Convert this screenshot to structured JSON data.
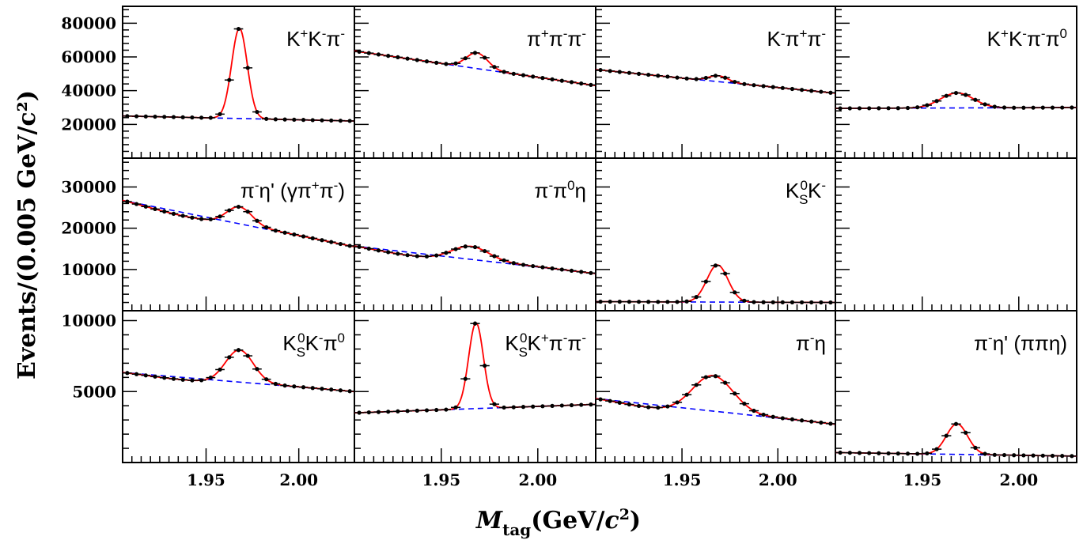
{
  "chart_data": {
    "type": "scatter",
    "layout": "grid 3 rows x 4 columns, shared axes",
    "xlabel_parts": {
      "main": "M",
      "sub": "tag",
      "units_pre": "(GeV/",
      "units_c": "c",
      "units_sup": "2",
      "units_post": ")"
    },
    "ylabel": "Events/(0.005 GeV/c²)",
    "xlim": [
      1.905,
      2.03
    ],
    "x_ticks": [
      1.95,
      2.0
    ],
    "x_tick_labels": [
      "1.95",
      "2.00"
    ],
    "row_axes": [
      {
        "ylim": [
          0,
          90000
        ],
        "ticks": [
          20000,
          40000,
          60000,
          80000
        ],
        "tick_labels": [
          "20000",
          "40000",
          "60000",
          "80000"
        ]
      },
      {
        "ylim": [
          0,
          37000
        ],
        "ticks": [
          10000,
          20000,
          30000
        ],
        "tick_labels": [
          "10000",
          "20000",
          "30000"
        ]
      },
      {
        "ylim": [
          0,
          10700
        ],
        "ticks": [
          5000,
          10000
        ],
        "tick_labels": [
          "5000",
          "10000"
        ]
      }
    ],
    "series_styles": {
      "data": {
        "color": "#000000",
        "marker": "point with error bars"
      },
      "fit": {
        "color": "#ff0000",
        "line": "solid"
      },
      "background": {
        "color": "#0000ff",
        "line": "dashed"
      }
    },
    "panels": [
      {
        "id": "kkpi",
        "row": 0,
        "col": 0,
        "label": [
          {
            "t": "K"
          },
          {
            "t": "+",
            "s": "sup"
          },
          {
            "t": "K"
          },
          {
            "t": "-",
            "s": "sup"
          },
          {
            "t": "π"
          },
          {
            "t": "-",
            "s": "sup"
          }
        ],
        "bkg_at_xmin": 25000,
        "bkg_at_xmax": 22000,
        "peak_amplitude": 53500,
        "peak_mean": 1.968,
        "peak_sigma": 0.0042,
        "curve_offset": 0
      },
      {
        "id": "pipipi",
        "row": 0,
        "col": 1,
        "label": [
          {
            "t": "π"
          },
          {
            "t": "+",
            "s": "sup"
          },
          {
            "t": "π"
          },
          {
            "t": "-",
            "s": "sup"
          },
          {
            "t": "π"
          },
          {
            "t": "-",
            "s": "sup"
          }
        ],
        "bkg_at_xmin": 63500,
        "bkg_at_xmax": 43000,
        "peak_amplitude": 9300,
        "peak_mean": 1.9685,
        "peak_sigma": 0.0055,
        "curve_offset": 0
      },
      {
        "id": "kpipi",
        "row": 0,
        "col": 2,
        "label": [
          {
            "t": "K"
          },
          {
            "t": "-",
            "s": "sup"
          },
          {
            "t": "π"
          },
          {
            "t": "+",
            "s": "sup"
          },
          {
            "t": "π"
          },
          {
            "t": "-",
            "s": "sup"
          }
        ],
        "bkg_at_xmin": 52500,
        "bkg_at_xmax": 38500,
        "peak_amplitude": 3500,
        "peak_mean": 1.969,
        "peak_sigma": 0.005,
        "curve_offset": 0
      },
      {
        "id": "kkpipi0",
        "row": 0,
        "col": 3,
        "label": [
          {
            "t": "K"
          },
          {
            "t": "+",
            "s": "sup"
          },
          {
            "t": "K"
          },
          {
            "t": "-",
            "s": "sup"
          },
          {
            "t": "π"
          },
          {
            "t": "-",
            "s": "sup"
          },
          {
            "t": "π"
          },
          {
            "t": "0",
            "s": "sup"
          }
        ],
        "bkg_at_xmin": 29500,
        "bkg_at_xmax": 30000,
        "peak_amplitude": 8900,
        "peak_mean": 1.968,
        "peak_sigma": 0.0085,
        "curve_offset": 0
      },
      {
        "id": "pietap_gpipi",
        "row": 1,
        "col": 0,
        "label": [
          {
            "t": "π"
          },
          {
            "t": "-",
            "s": "sup"
          },
          {
            "t": "η' (γπ"
          },
          {
            "t": "+",
            "s": "sup"
          },
          {
            "t": "π"
          },
          {
            "t": "-",
            "s": "sup"
          },
          {
            "t": ")"
          }
        ],
        "bkg_at_xmin": 27000,
        "bkg_at_xmax": 15500,
        "peak_amplitude": 4300,
        "peak_mean": 1.968,
        "peak_sigma": 0.0068,
        "curve_offset": -1000
      },
      {
        "id": "pipi0eta",
        "row": 1,
        "col": 1,
        "label": [
          {
            "t": "π"
          },
          {
            "t": "-",
            "s": "sup"
          },
          {
            "t": "π"
          },
          {
            "t": "0",
            "s": "sup"
          },
          {
            "t": "η"
          }
        ],
        "bkg_at_xmin": 16000,
        "bkg_at_xmax": 9000,
        "peak_amplitude": 3300,
        "peak_mean": 1.965,
        "peak_sigma": 0.0095,
        "curve_offset": -1000
      },
      {
        "id": "kskm",
        "row": 1,
        "col": 2,
        "label": [
          {
            "t": "K"
          },
          {
            "t": "S",
            "s": "sub"
          },
          {
            "t": "0",
            "s": "sup",
            "over": true
          },
          {
            "t": "K"
          },
          {
            "t": "-",
            "s": "sup"
          }
        ],
        "bkg_at_xmin": 2200,
        "bkg_at_xmax": 2000,
        "peak_amplitude": 9000,
        "peak_mean": 1.9685,
        "peak_sigma": 0.0055,
        "curve_offset": 0
      },
      {
        "id": "empty",
        "row": 1,
        "col": 3,
        "label": [],
        "empty": true
      },
      {
        "id": "kskpi0",
        "row": 2,
        "col": 0,
        "label": [
          {
            "t": "K"
          },
          {
            "t": "S",
            "s": "sub"
          },
          {
            "t": "0",
            "s": "sup",
            "over": true
          },
          {
            "t": "K"
          },
          {
            "t": "-",
            "s": "sup"
          },
          {
            "t": "π"
          },
          {
            "t": "0",
            "s": "sup"
          }
        ],
        "bkg_at_xmin": 6400,
        "bkg_at_xmax": 5000,
        "peak_amplitude": 2300,
        "peak_mean": 1.968,
        "peak_sigma": 0.0075,
        "curve_offset": -200
      },
      {
        "id": "kskpipi",
        "row": 2,
        "col": 1,
        "label": [
          {
            "t": "K"
          },
          {
            "t": "S",
            "s": "sub"
          },
          {
            "t": "0",
            "s": "sup",
            "over": true
          },
          {
            "t": "K"
          },
          {
            "t": "+",
            "s": "sup"
          },
          {
            "t": "π"
          },
          {
            "t": "-",
            "s": "sup"
          },
          {
            "t": "π"
          },
          {
            "t": "-",
            "s": "sup"
          }
        ],
        "bkg_at_xmin": 3500,
        "bkg_at_xmax": 4100,
        "peak_amplitude": 6050,
        "peak_mean": 1.968,
        "peak_sigma": 0.0038,
        "curve_offset": 0
      },
      {
        "id": "pieta",
        "row": 2,
        "col": 2,
        "label": [
          {
            "t": "π"
          },
          {
            "t": "-",
            "s": "sup"
          },
          {
            "t": "η"
          }
        ],
        "bkg_at_xmin": 4600,
        "bkg_at_xmax": 2700,
        "peak_amplitude": 2550,
        "peak_mean": 1.966,
        "peak_sigma": 0.0105,
        "curve_offset": -300
      },
      {
        "id": "pietap_pipieta",
        "row": 2,
        "col": 3,
        "label": [
          {
            "t": "π"
          },
          {
            "t": "-",
            "s": "sup"
          },
          {
            "t": "η' (ππη)"
          }
        ],
        "bkg_at_xmin": 700,
        "bkg_at_xmax": 450,
        "peak_amplitude": 2150,
        "peak_mean": 1.968,
        "peak_sigma": 0.0055,
        "curve_offset": 0
      }
    ]
  }
}
